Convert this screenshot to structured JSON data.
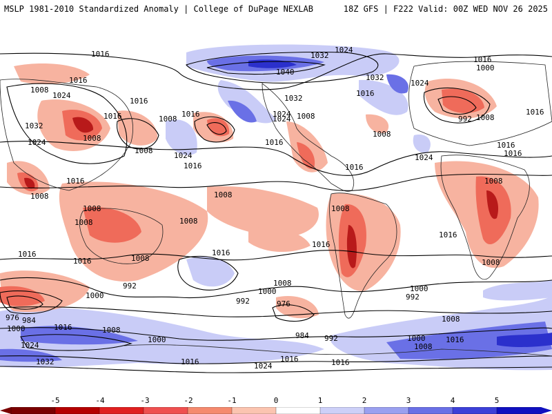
{
  "header": {
    "title_left": "MSLP 1981-2010 Standardized Anomaly | College of DuPage NEXLAB",
    "title_right": "18Z GFS | F222 Valid: 00Z WED NOV 26 2025"
  },
  "colorbar": {
    "ticks": [
      "-5",
      "-4",
      "-3",
      "-2",
      "-1",
      "0",
      "1",
      "2",
      "3",
      "4",
      "5"
    ],
    "colors": [
      "#7a0000",
      "#b40000",
      "#e02020",
      "#ef5050",
      "#f58a6e",
      "#fbc4b0",
      "#ffffff",
      "#cdd0f8",
      "#9aa0f0",
      "#6a70e6",
      "#3c40d8",
      "#1010c0"
    ]
  },
  "map": {
    "isobar_labels": [
      "1016",
      "1024",
      "1032",
      "1024",
      "1016",
      "1000",
      "1008",
      "1016",
      "1040",
      "1016",
      "1032",
      "1024",
      "1024",
      "1016",
      "1032",
      "1008",
      "1016",
      "1016",
      "1024",
      "992",
      "1008",
      "1016",
      "1008",
      "1024",
      "1008",
      "1032",
      "1016",
      "1024",
      "1008",
      "1008",
      "1016",
      "1024",
      "1016",
      "1016",
      "1008",
      "1008",
      "1008",
      "1008",
      "1008",
      "1016",
      "1016",
      "1016",
      "1016",
      "1016",
      "1008",
      "1008",
      "1016",
      "1008",
      "1008",
      "992",
      "1016",
      "1000",
      "1000",
      "1000",
      "992",
      "1008",
      "992",
      "976",
      "984",
      "976",
      "1000",
      "1016",
      "1008",
      "1000",
      "984",
      "992",
      "1000",
      "1016",
      "1024",
      "1008",
      "1016",
      "1032",
      "1016",
      "1008",
      "1016",
      "1024"
    ]
  }
}
